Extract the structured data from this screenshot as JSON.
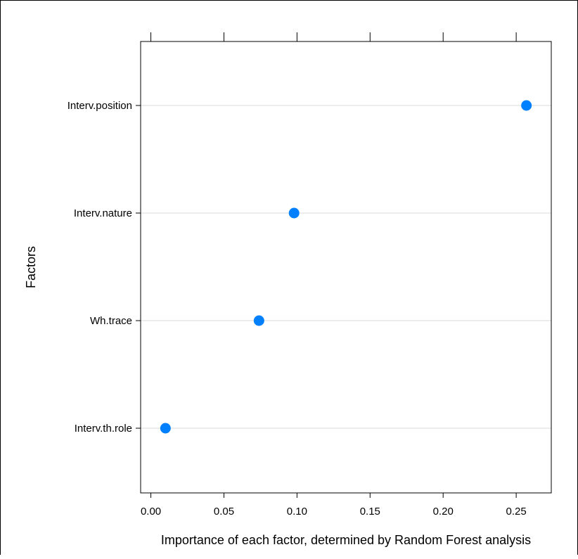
{
  "chart_data": {
    "type": "scatter",
    "style": "dotplot",
    "ylabel": "Factors",
    "xlabel": "Importance of each factor, determined by Random Forest analysis",
    "categories": [
      "Interv.position",
      "Interv.nature",
      "Wh.trace",
      "Interv.th.role"
    ],
    "values": [
      0.257,
      0.098,
      0.074,
      0.01
    ],
    "xlim": [
      -0.007,
      0.274
    ],
    "xticks": [
      0.0,
      0.05,
      0.1,
      0.15,
      0.2,
      0.25
    ],
    "xtick_labels": [
      "0.00",
      "0.05",
      "0.10",
      "0.15",
      "0.20",
      "0.25"
    ],
    "grid": "horizontal reference lines",
    "point_color": "#0080ff",
    "gridline_color": "#e6e6e6"
  }
}
